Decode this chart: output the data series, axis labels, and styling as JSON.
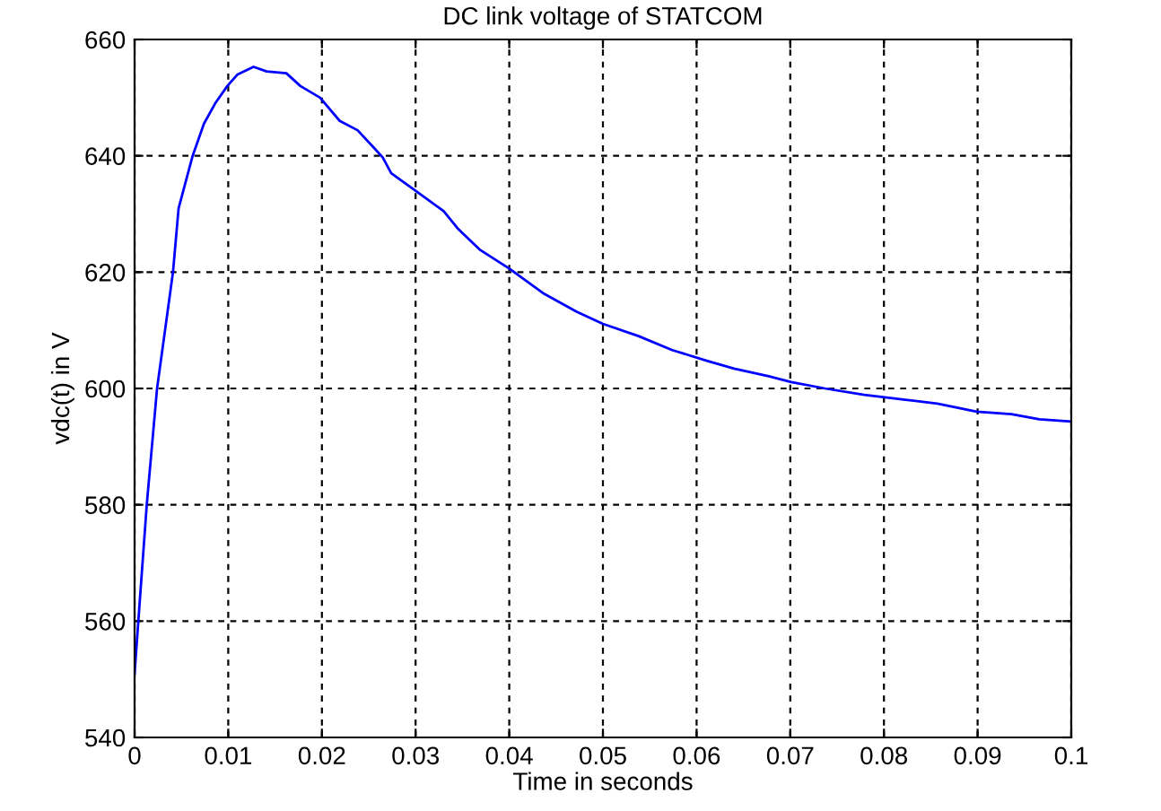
{
  "chart_data": {
    "type": "line",
    "title": "DC link voltage of STATCOM",
    "xlabel": "Time in seconds",
    "ylabel": "vdc(t) in V",
    "x": [
      0,
      0.0004,
      0.0013,
      0.0024,
      0.0041,
      0.0047,
      0.0062,
      0.0074,
      0.0086,
      0.0099,
      0.011,
      0.0127,
      0.0141,
      0.0162,
      0.0177,
      0.0198,
      0.0219,
      0.0238,
      0.0256,
      0.0265,
      0.0274,
      0.03,
      0.033,
      0.0345,
      0.0369,
      0.04,
      0.0436,
      0.0472,
      0.05,
      0.0538,
      0.0574,
      0.061,
      0.064,
      0.0677,
      0.0701,
      0.0737,
      0.0779,
      0.0821,
      0.0857,
      0.0899,
      0.0936,
      0.0966,
      0.1
    ],
    "series": [
      {
        "color": "#0000ff",
        "values": [
          551,
          560,
          580,
          600,
          620,
          631,
          640,
          645.5,
          649,
          652,
          654,
          655.3,
          654.5,
          654.2,
          652,
          650,
          646,
          644.4,
          641.3,
          639.7,
          637,
          634,
          630.5,
          627.5,
          623.8,
          620.6,
          616.4,
          613.2,
          611.1,
          609,
          606.6,
          604.8,
          603.4,
          602.1,
          601.1,
          600,
          598.9,
          598.1,
          597.4,
          596,
          595.6,
          594.7,
          594.3
        ]
      }
    ],
    "xlim": [
      0,
      0.1
    ],
    "ylim": [
      540,
      660
    ],
    "xticks": [
      0,
      0.01,
      0.02,
      0.03,
      0.04,
      0.05,
      0.06,
      0.07,
      0.08,
      0.09,
      0.1
    ],
    "yticks": [
      540,
      560,
      580,
      600,
      620,
      640,
      660
    ],
    "grid": true,
    "line_style": "solid",
    "marker": "none"
  }
}
